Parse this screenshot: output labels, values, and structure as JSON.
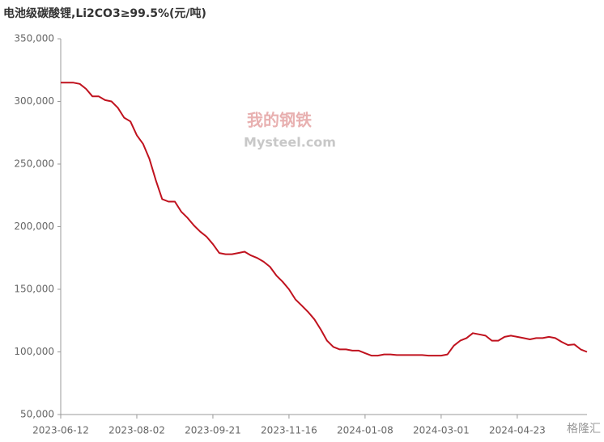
{
  "chart_data": {
    "type": "line",
    "title": "电池级碳酸锂,Li2CO3≥99.5%(元/吨)",
    "watermark": "Mysteel.com",
    "watermark_logo": "我的钢铁",
    "corner_logo": "格隆汇",
    "categories": [
      "2023-06-12",
      null,
      null,
      null,
      null,
      null,
      null,
      null,
      null,
      null,
      null,
      null,
      "2023-08-02",
      null,
      null,
      null,
      null,
      null,
      null,
      null,
      null,
      null,
      null,
      null,
      "2023-09-21",
      null,
      null,
      null,
      null,
      null,
      null,
      null,
      null,
      null,
      null,
      null,
      "2023-11-16",
      null,
      null,
      null,
      null,
      null,
      null,
      null,
      null,
      null,
      null,
      null,
      "2024-01-08",
      null,
      null,
      null,
      null,
      null,
      null,
      null,
      null,
      null,
      null,
      null,
      "2024-03-01",
      null,
      null,
      null,
      null,
      null,
      null,
      null,
      null,
      null,
      null,
      null,
      "2024-04-23",
      null,
      null,
      null,
      null,
      null,
      null,
      null,
      null,
      null,
      null,
      null
    ],
    "series": [
      {
        "name": "电池级碳酸锂",
        "color": "#c0121e",
        "values": [
          315000,
          315000,
          315000,
          314000,
          310000,
          304000,
          304000,
          301000,
          300000,
          295000,
          287000,
          284000,
          273000,
          266000,
          254000,
          237000,
          222000,
          220000,
          220000,
          212000,
          207000,
          201000,
          196000,
          192000,
          186000,
          179000,
          178000,
          178000,
          179000,
          180000,
          177000,
          175000,
          172000,
          168000,
          161000,
          156000,
          150000,
          142000,
          137000,
          132000,
          126000,
          118000,
          109000,
          104000,
          102000,
          102000,
          101000,
          101000,
          99000,
          97000,
          97000,
          98000,
          98000,
          97500,
          97500,
          97500,
          97500,
          97500,
          97000,
          97000,
          97000,
          98000,
          105000,
          109000,
          111000,
          115000,
          114000,
          113000,
          109000,
          109000,
          112000,
          113000,
          112000,
          111000,
          110000,
          111000,
          111000,
          112000,
          111000,
          108000,
          105500,
          106000,
          102000,
          100000
        ]
      }
    ],
    "ylim": [
      50000,
      350000
    ],
    "yticks": [
      {
        "value": 50000,
        "label": "50,000"
      },
      {
        "value": 100000,
        "label": "100,000"
      },
      {
        "value": 150000,
        "label": "150,000"
      },
      {
        "value": 200000,
        "label": "200,000"
      },
      {
        "value": 250000,
        "label": "250,000"
      },
      {
        "value": 300000,
        "label": "300,000"
      },
      {
        "value": 350000,
        "label": "350,000"
      }
    ],
    "grid": false
  }
}
